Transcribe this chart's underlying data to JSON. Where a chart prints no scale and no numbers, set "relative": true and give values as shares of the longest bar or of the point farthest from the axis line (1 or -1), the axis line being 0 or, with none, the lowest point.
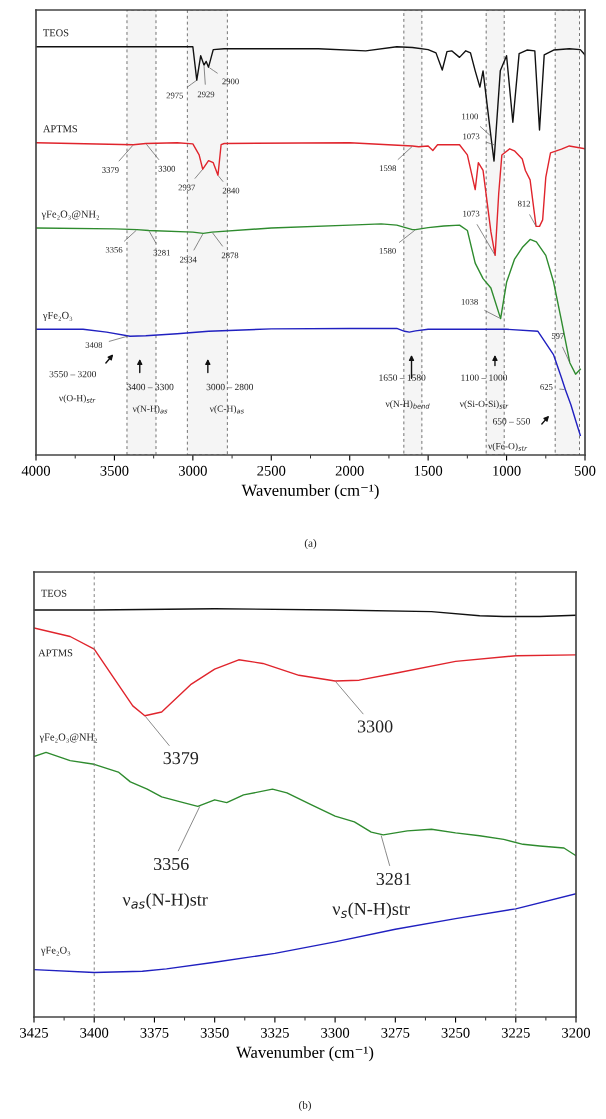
{
  "chart_data": [
    {
      "type": "line",
      "relative": true,
      "xlabel": "Wavenumber (cm⁻¹)",
      "xlim": [
        4000,
        500
      ],
      "xticks": [
        4000,
        {
          "value": 3750,
          "label": null
        },
        3500,
        {
          "value": 3250,
          "label": null
        },
        3000,
        {
          "value": 2750,
          "label": null
        },
        2500,
        {
          "value": 2250,
          "label": null
        },
        2000,
        {
          "value": 1750,
          "label": null
        },
        1500,
        {
          "value": 1250,
          "label": null
        },
        1000,
        {
          "value": 750,
          "label": null
        },
        500
      ],
      "tick_labels": "x",
      "series": [
        {
          "name": "TEOS",
          "color": "#111111",
          "x": [
            4000,
            3000,
            2975,
            2950,
            2929,
            2915,
            2900,
            2870,
            2800,
            2200,
            1898,
            1700,
            1600,
            1500,
            1450,
            1410,
            1380,
            1350,
            1300,
            1260,
            1230,
            1200,
            1170,
            1150,
            1100,
            1080,
            1040,
            1000,
            960,
            920,
            870,
            820,
            790,
            760,
            700,
            600,
            530,
            500
          ],
          "values": [
            1.0,
            1.0,
            0.918,
            0.978,
            0.955,
            0.964,
            0.95,
            0.993,
            0.995,
            0.995,
            0.99,
            1.0,
            0.998,
            0.993,
            0.985,
            0.943,
            0.988,
            0.99,
            0.974,
            0.99,
            0.985,
            0.941,
            0.901,
            0.941,
            0.781,
            0.72,
            0.941,
            0.978,
            0.815,
            0.983,
            0.992,
            0.99,
            0.796,
            0.98,
            0.992,
            0.995,
            0.993,
            0.98
          ]
        },
        {
          "name": "APTMS",
          "color": "#e0242c",
          "x": [
            4000,
            3380,
            3300,
            3100,
            3000,
            2960,
            2937,
            2900,
            2870,
            2840,
            2820,
            2800,
            2000,
            1600,
            1560,
            1500,
            1470,
            1440,
            1300,
            1250,
            1200,
            1180,
            1150,
            1100,
            1073,
            1050,
            1030,
            980,
            950,
            900,
            880,
            850,
            812,
            790,
            770,
            750,
            720,
            650,
            600,
            500
          ],
          "values": [
            0.765,
            0.76,
            0.763,
            0.765,
            0.762,
            0.735,
            0.7,
            0.721,
            0.716,
            0.685,
            0.76,
            0.763,
            0.765,
            0.757,
            0.755,
            0.757,
            0.746,
            0.76,
            0.76,
            0.735,
            0.65,
            0.716,
            0.697,
            0.547,
            0.489,
            0.641,
            0.735,
            0.75,
            0.745,
            0.725,
            0.697,
            0.674,
            0.56,
            0.56,
            0.576,
            0.68,
            0.74,
            0.749,
            0.757,
            0.75
          ]
        },
        {
          "name": "γFe₂O₃@NH₂",
          "color": "#2e8b2e",
          "x": [
            4000,
            3500,
            3356,
            3281,
            3000,
            2934,
            2878,
            2500,
            2000,
            1800,
            1700,
            1600,
            1580,
            1500,
            1400,
            1300,
            1250,
            1200,
            1150,
            1100,
            1038,
            1000,
            950,
            900,
            850,
            810,
            750,
            700,
            650,
            597,
            560,
            530
          ],
          "values": [
            0.556,
            0.554,
            0.552,
            0.55,
            0.546,
            0.543,
            0.546,
            0.556,
            0.563,
            0.566,
            0.563,
            0.552,
            0.552,
            0.557,
            0.561,
            0.563,
            0.55,
            0.47,
            0.432,
            0.409,
            0.334,
            0.423,
            0.479,
            0.508,
            0.528,
            0.522,
            0.489,
            0.423,
            0.329,
            0.226,
            0.198,
            0.21
          ]
        },
        {
          "name": "γFe₂O₃",
          "color": "#2020c0",
          "x": [
            4000,
            3700,
            3550,
            3400,
            3300,
            3100,
            2900,
            2500,
            2000,
            1700,
            1650,
            1620,
            1580,
            1500,
            1000,
            800,
            700,
            650,
            625,
            590,
            560,
            530
          ],
          "values": [
            0.308,
            0.308,
            0.301,
            0.291,
            0.292,
            0.297,
            0.303,
            0.309,
            0.31,
            0.31,
            0.303,
            0.301,
            0.304,
            0.308,
            0.308,
            0.303,
            0.245,
            0.189,
            0.16,
            0.123,
            0.085,
            0.048
          ]
        }
      ],
      "bands": [
        {
          "axis": "x",
          "from": 3420,
          "to": 3235,
          "color": "#707070"
        },
        {
          "axis": "x",
          "from": 3035,
          "to": 2780,
          "color": "#707070"
        },
        {
          "axis": "x",
          "from": 1655,
          "to": 1540,
          "color": "#707070"
        },
        {
          "axis": "x",
          "from": 1130,
          "to": 1015,
          "color": "#707070"
        },
        {
          "axis": "x",
          "from": 690,
          "to": 535,
          "color": "#707070"
        }
      ],
      "annotations": [
        {
          "text": "2975",
          "x": 2975,
          "y": 0.918
        },
        {
          "text": "2929",
          "x": 2929,
          "y": 0.955
        },
        {
          "text": "2900",
          "x": 2900,
          "y": 0.95
        },
        {
          "text": "3379",
          "x": 3379,
          "y": 0.76
        },
        {
          "text": "3300",
          "x": 3300,
          "y": 0.763
        },
        {
          "text": "2937",
          "x": 2937,
          "y": 0.7
        },
        {
          "text": "2840",
          "x": 2840,
          "y": 0.685
        },
        {
          "text": "1598",
          "x": 1598,
          "y": 0.757
        },
        {
          "text": "1100",
          "x": 1100,
          "y": 0.781
        },
        {
          "text": "1073",
          "x": 1073,
          "y": 0.759
        },
        {
          "text": "1073",
          "x": 1073,
          "y": 0.489
        },
        {
          "text": "812",
          "x": 812,
          "y": 0.56
        },
        {
          "text": "3356",
          "x": 3356,
          "y": 0.552
        },
        {
          "text": "3281",
          "x": 3281,
          "y": 0.55
        },
        {
          "text": "2934",
          "x": 2934,
          "y": 0.543
        },
        {
          "text": "2878",
          "x": 2878,
          "y": 0.546
        },
        {
          "text": "1580",
          "x": 1580,
          "y": 0.552
        },
        {
          "text": "1038",
          "x": 1038,
          "y": 0.334
        },
        {
          "text": "3408",
          "x": 3408,
          "y": 0.292
        },
        {
          "text": "597",
          "x": 597,
          "y": 0.226
        },
        {
          "text": "625",
          "x": 625,
          "y": 0.16
        },
        "3550 – 3200",
        "ν(O-H)$_{str}$",
        "3400 – 3300",
        "ν(N-H)$_{as}$",
        "3000 – 2800",
        "ν(C-H)$_{as}$",
        "1650 – 1580",
        "ν(N-H)$_{bend}$",
        "1100 – 1000",
        "ν(Si-O-Si)$_{str}$",
        "650 – 550",
        "ν(Fe-O)$_{str}$",
        "(a)"
      ]
    },
    {
      "type": "line",
      "relative": true,
      "xlabel": "Wavenumber (cm⁻¹)",
      "xlim": [
        3425,
        3200
      ],
      "xticks": [
        3425,
        {
          "value": 3412.5,
          "label": null
        },
        3400,
        {
          "value": 3387.5,
          "label": null
        },
        3375,
        {
          "value": 3362.5,
          "label": null
        },
        3350,
        {
          "value": 3337.5,
          "label": null
        },
        3325,
        {
          "value": 3312.5,
          "label": null
        },
        3300,
        {
          "value": 3287.5,
          "label": null
        },
        3275,
        {
          "value": 3262.5,
          "label": null
        },
        3250,
        {
          "value": 3237.5,
          "label": null
        },
        3225,
        {
          "value": 3212.5,
          "label": null
        },
        3200
      ],
      "tick_labels": "x",
      "series": [
        {
          "name": "TEOS",
          "color": "#111111",
          "x": [
            3425,
            3400,
            3350,
            3300,
            3260,
            3240,
            3230,
            3215,
            3200
          ],
          "values": [
            0.997,
            0.997,
            1.0,
            0.997,
            0.993,
            0.983,
            0.981,
            0.981,
            0.984
          ]
        },
        {
          "name": "APTMS",
          "color": "#e0242c",
          "x": [
            3425,
            3410,
            3400,
            3390,
            3384,
            3379,
            3372,
            3360,
            3350,
            3340,
            3330,
            3315,
            3300,
            3290,
            3275,
            3250,
            3225,
            3200
          ],
          "values": [
            0.953,
            0.932,
            0.901,
            0.814,
            0.762,
            0.738,
            0.747,
            0.814,
            0.852,
            0.875,
            0.866,
            0.837,
            0.823,
            0.825,
            0.842,
            0.871,
            0.885,
            0.887
          ]
        },
        {
          "name": "γFe₂O₃@NH₂",
          "color": "#2e8b2e",
          "x": [
            3425,
            3420,
            3410,
            3400,
            3390,
            3385,
            3378,
            3372,
            3363,
            3357,
            3350,
            3345,
            3338,
            3326,
            3320,
            3310,
            3300,
            3292,
            3285,
            3280,
            3270,
            3260,
            3250,
            3240,
            3230,
            3222,
            3215,
            3205,
            3200
          ],
          "values": [
            0.638,
            0.648,
            0.628,
            0.619,
            0.6,
            0.576,
            0.558,
            0.539,
            0.525,
            0.516,
            0.532,
            0.525,
            0.544,
            0.558,
            0.549,
            0.52,
            0.492,
            0.478,
            0.453,
            0.446,
            0.456,
            0.46,
            0.451,
            0.444,
            0.435,
            0.423,
            0.419,
            0.414,
            0.395
          ]
        },
        {
          "name": "γFe₂O₃",
          "color": "#2020c0",
          "x": [
            3425,
            3400,
            3380,
            3370,
            3350,
            3325,
            3300,
            3275,
            3250,
            3225,
            3200
          ],
          "values": [
            0.116,
            0.109,
            0.112,
            0.118,
            0.134,
            0.156,
            0.184,
            0.215,
            0.241,
            0.265,
            0.302
          ]
        }
      ],
      "ref_lines": [
        {
          "axis": "x",
          "value": 3400,
          "color": "#808080",
          "line_style": "dashed"
        },
        {
          "axis": "x",
          "value": 3225,
          "color": "#808080",
          "line_style": "dashed"
        }
      ],
      "annotations": [
        {
          "text": "3379",
          "x": 3379,
          "y": 0.738
        },
        {
          "text": "3300",
          "x": 3300,
          "y": 0.823
        },
        {
          "text": "3356",
          "x": 3356,
          "y": 0.518
        },
        "ν$_{as}$(N-H)str",
        {
          "text": "3281",
          "x": 3281,
          "y": 0.447
        },
        "ν$_{s}$(N-H)str",
        "(b)"
      ]
    }
  ]
}
